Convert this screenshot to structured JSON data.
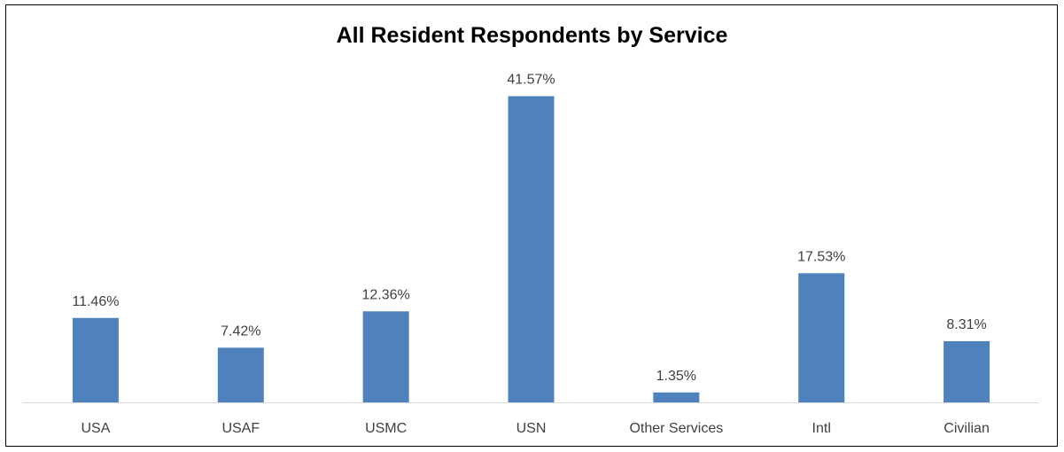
{
  "chart_data": {
    "type": "bar",
    "title": "All Resident Respondents by Service",
    "xlabel": "",
    "ylabel": "",
    "categories": [
      "USA",
      "USAF",
      "USMC",
      "USN",
      "Other Services",
      "Intl",
      "Civilian"
    ],
    "values": [
      11.46,
      7.42,
      12.36,
      41.57,
      1.35,
      17.53,
      8.31
    ],
    "value_labels": [
      "11.46%",
      "7.42%",
      "12.36%",
      "41.57%",
      "1.35%",
      "17.53%",
      "8.31%"
    ],
    "unit": "%",
    "ylim": [
      0,
      45
    ],
    "grid": false,
    "legend": "none",
    "bar_color": "#4F81BD",
    "axis_color": "#D9D9D9",
    "label_color": "#404040"
  }
}
